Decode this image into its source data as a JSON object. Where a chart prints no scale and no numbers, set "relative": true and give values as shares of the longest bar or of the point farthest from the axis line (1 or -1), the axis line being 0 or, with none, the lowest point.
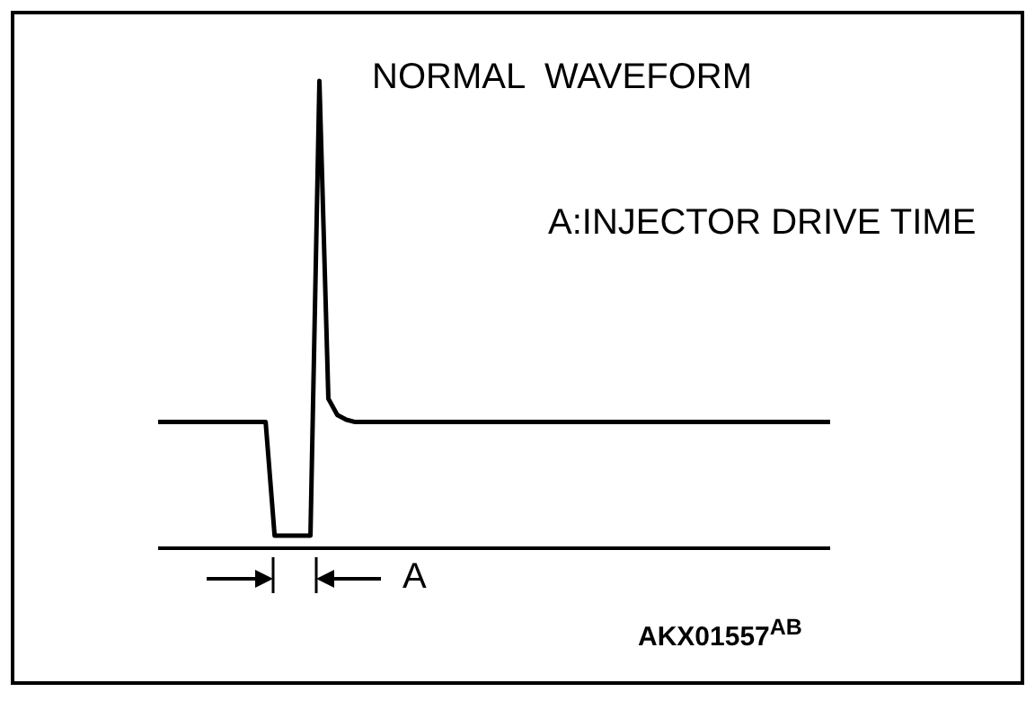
{
  "chart_data": {
    "type": "line",
    "title": "NORMAL  WAVEFORM",
    "relative": true,
    "categories": [
      null,
      null,
      null,
      null,
      null,
      null,
      null,
      null,
      null,
      null,
      null,
      null,
      null,
      null,
      null,
      null,
      null,
      null,
      null,
      null,
      null,
      null,
      null,
      null,
      null,
      null,
      null,
      null,
      null,
      null,
      null,
      null,
      null,
      null,
      null,
      null,
      null,
      null,
      null,
      null,
      null,
      null,
      null,
      null,
      null,
      null,
      null,
      null,
      null,
      null,
      null,
      null,
      null,
      null,
      null,
      null,
      null,
      null,
      null,
      null,
      null,
      null,
      null,
      null,
      null,
      null,
      null,
      null,
      null,
      null,
      null,
      null,
      null,
      null,
      null,
      null
    ],
    "series": [
      {
        "color": "#000000",
        "values": [
          0.27,
          0.27,
          0.27,
          0.27,
          0.27,
          0.27,
          0.27,
          0.27,
          0.27,
          0.27,
          0.27,
          0.27,
          0.27,
          0.027,
          0.027,
          0.027,
          0.027,
          0.027,
          1,
          0.32,
          0.285,
          0.275,
          0.27,
          0.27,
          0.27,
          0.27,
          0.27,
          0.27,
          0.27,
          0.27,
          0.27,
          0.27,
          0.27,
          0.27,
          0.27,
          0.27,
          0.27,
          0.27,
          0.27,
          0.27,
          0.27,
          0.27,
          0.27,
          0.27,
          0.27,
          0.27,
          0.27,
          0.27,
          0.27,
          0.27,
          0.27,
          0.27,
          0.27,
          0.27,
          0.27,
          0.27,
          0.27,
          0.27,
          0.27,
          0.27,
          0.27,
          0.27,
          0.27,
          0.27,
          0.27,
          0.27,
          0.27,
          0.27,
          0.27,
          0.27,
          0.27,
          0.27,
          0.27,
          0.27,
          0.27,
          0.27
        ]
      }
    ],
    "annotations": [
      "A:INJECTOR DRIVE TIME",
      "A",
      "AKX01557$^{AB}$"
    ]
  }
}
